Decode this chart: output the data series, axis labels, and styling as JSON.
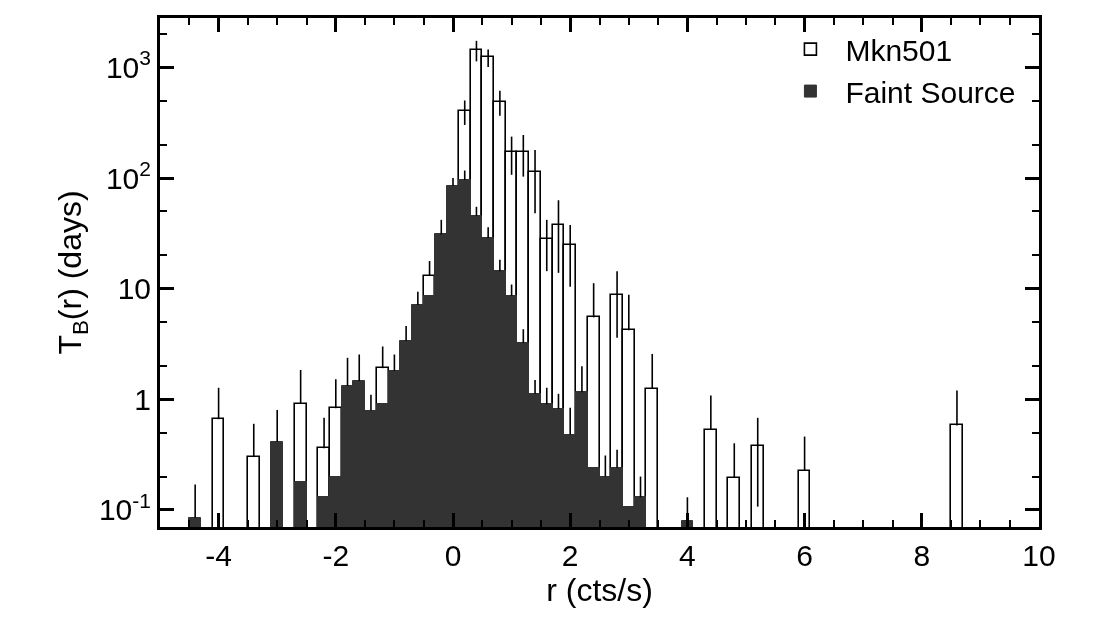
{
  "chart_data": {
    "type": "histogram",
    "xlabel": "r (cts/s)",
    "ylabel": "T$_{B}$(r) (days)",
    "bins": [
      -4.9,
      -4.7,
      -4.5,
      -4.3,
      -4.1,
      -3.9,
      -3.7,
      -3.5,
      -3.3,
      -3.1,
      -2.9,
      -2.7,
      -2.5,
      -2.3,
      -2.1,
      -1.9,
      -1.7,
      -1.5,
      -1.3,
      -1.1,
      -0.9,
      -0.7,
      -0.5,
      -0.3,
      -0.1,
      0.1,
      0.3,
      0.5,
      0.7,
      0.9,
      1.1,
      1.3,
      1.5,
      1.7,
      1.9,
      2.1,
      2.3,
      2.5,
      2.7,
      2.9,
      3.1,
      3.3,
      3.5,
      3.7,
      3.9,
      4.1,
      4.3,
      4.5,
      4.7,
      4.9,
      5.1,
      5.3,
      5.5,
      5.7,
      5.9,
      6.1,
      6.3,
      6.5,
      6.7,
      6.9,
      7.1,
      7.3,
      7.5,
      7.7,
      7.9,
      8.1,
      8.3,
      8.5,
      8.7,
      8.9,
      9.1,
      9.3,
      9.5,
      9.7,
      9.9
    ],
    "series": [
      {
        "name": "Mkn501",
        "color": "#000000",
        "values": [
          null,
          null,
          null,
          null,
          0.66,
          null,
          null,
          0.3,
          null,
          null,
          null,
          0.91,
          null,
          0.36,
          0.83,
          null,
          null,
          null,
          1.91,
          null,
          null,
          null,
          13,
          null,
          null,
          405,
          1426,
          1245,
          491,
          173,
          173,
          113,
          28.2,
          37.6,
          24.9,
          null,
          5.5,
          null,
          8.8,
          4.2,
          null,
          1.24,
          null,
          null,
          null,
          null,
          0.53,
          null,
          0.196,
          null,
          0.38,
          null,
          null,
          null,
          0.226,
          null,
          null,
          null,
          null,
          null,
          null,
          null,
          null,
          null,
          null,
          null,
          null,
          0.58,
          null,
          null,
          null,
          null,
          null,
          null
        ],
        "errors": [
          null,
          null,
          null,
          null,
          [
            0.66,
            1.27
          ],
          null,
          null,
          [
            0.3,
            0.6
          ],
          null,
          null,
          null,
          [
            0.91,
            1.84
          ],
          null,
          [
            0.36,
            0.68
          ],
          [
            0.83,
            1.52
          ],
          null,
          null,
          null,
          [
            1.91,
            3.0
          ],
          null,
          null,
          null,
          [
            13,
            17.8
          ],
          null,
          null,
          [
            302,
            503
          ],
          [
            1135,
            1740
          ],
          [
            1010,
            1455
          ],
          [
            365,
            616
          ],
          [
            107,
            237
          ],
          [
            103,
            245
          ],
          [
            48,
            179
          ],
          [
            14.4,
            41.9
          ],
          [
            13.9,
            63
          ],
          [
            10.4,
            37.6
          ],
          null,
          [
            5.5,
            11.2
          ],
          null,
          [
            3.6,
            14.4
          ],
          [
            4.2,
            8.8
          ],
          null,
          [
            1.24,
            2.57
          ],
          null,
          null,
          null,
          null,
          [
            0.53,
            1.08
          ],
          null,
          [
            0.196,
            0.4
          ],
          null,
          [
            0.107,
            0.68
          ],
          null,
          null,
          null,
          [
            0.226,
            0.46
          ],
          null,
          null,
          null,
          null,
          null,
          null,
          null,
          null,
          null,
          null,
          null,
          null,
          [
            0.58,
            1.2
          ],
          null,
          null,
          null,
          null,
          null,
          null
        ]
      },
      {
        "name": "Faint Source",
        "color": "#333333",
        "values": [
          null,
          null,
          0.085,
          null,
          null,
          null,
          null,
          null,
          null,
          0.41,
          null,
          0.18,
          null,
          0.13,
          0.2,
          1.32,
          1.46,
          0.79,
          0.91,
          1.8,
          3.37,
          7.1,
          8.5,
          31,
          85,
          96,
          45.5,
          28.7,
          14.4,
          8.6,
          3.24,
          1.12,
          0.9,
          0.82,
          0.48,
          1.16,
          0.24,
          0.2,
          0.24,
          0.107,
          0.13,
          null,
          null,
          null,
          0.08,
          null,
          null,
          null,
          null,
          null,
          null,
          null,
          null,
          null,
          null,
          null,
          null,
          null,
          null,
          null,
          null,
          null,
          null,
          null,
          null,
          null,
          null,
          null,
          null,
          null,
          null,
          null,
          null,
          null
        ],
        "errors": [
          null,
          null,
          [
            0.085,
            0.17
          ],
          null,
          null,
          null,
          null,
          null,
          null,
          [
            0.41,
            0.8
          ],
          null,
          null,
          null,
          null,
          null,
          [
            1.32,
            2.37
          ],
          [
            1.46,
            2.54
          ],
          [
            0.79,
            1.1
          ],
          null,
          [
            1.8,
            2.54
          ],
          [
            3.37,
            4.6
          ],
          [
            7.1,
            9.4
          ],
          null,
          [
            31,
            41.9
          ],
          [
            85,
            100
          ],
          [
            96,
            117
          ],
          [
            45.5,
            55
          ],
          [
            28.7,
            36
          ],
          [
            14.4,
            18.3
          ],
          [
            8.6,
            10.9
          ],
          [
            3.24,
            4.3
          ],
          [
            1.12,
            1.49
          ],
          [
            0.9,
            1.27
          ],
          [
            0.82,
            1.12
          ],
          [
            0.48,
            0.84
          ],
          [
            1.16,
            1.99
          ],
          null,
          [
            0.2,
            0.31
          ],
          [
            0.24,
            0.35
          ],
          null,
          [
            0.13,
            0.2
          ],
          null,
          null,
          null,
          [
            0.08,
            0.13
          ],
          null,
          null,
          null,
          null,
          null,
          null,
          null,
          null,
          null,
          null,
          null,
          null,
          null,
          null,
          null,
          null,
          null,
          null,
          null,
          null,
          null,
          null,
          null,
          null,
          null,
          null,
          null,
          null,
          null
        ]
      }
    ],
    "xlim": [
      -5,
      10
    ],
    "xticks": [
      -4,
      -2,
      0,
      2,
      4,
      6,
      8,
      10
    ],
    "ylim": [
      0.07,
      2800
    ],
    "log": true,
    "yticks": [
      {
        "value": 0.1,
        "label": "10$^{-1}$"
      },
      1,
      10,
      {
        "value": 100,
        "label": "10$^{2}$"
      },
      {
        "value": 1000,
        "label": "10$^{3}$"
      }
    ],
    "legend": "top right"
  }
}
